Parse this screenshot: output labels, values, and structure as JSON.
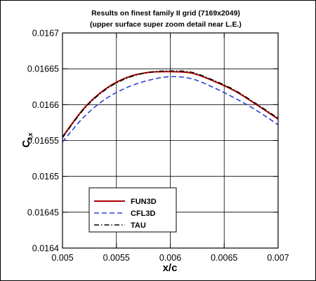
{
  "chart_data": {
    "type": "line",
    "title": "Results on finest family II grid (7169x2049)",
    "subtitle": "(upper surface super zoom detail near L.E.)",
    "xlabel": "x/c",
    "ylabel": "C",
    "ylabel_subscript": "f,x",
    "xlim": [
      0.005,
      0.007
    ],
    "ylim": [
      0.0164,
      0.0167
    ],
    "x_ticks": [
      0.005,
      0.0055,
      0.006,
      0.0065,
      0.007
    ],
    "x_tick_labels": [
      "0.005",
      "0.0055",
      "0.006",
      "0.0065",
      "0.007"
    ],
    "y_ticks": [
      0.0164,
      0.01645,
      0.0165,
      0.01655,
      0.0166,
      0.01665,
      0.0167
    ],
    "y_tick_labels": [
      "0.0164",
      "0.01645",
      "0.0165",
      "0.01655",
      "0.0166",
      "0.01665",
      "0.0167"
    ],
    "grid": true,
    "legend_placement": "lower-left",
    "series": [
      {
        "name": "FUN3D",
        "color": "#b00000",
        "style": "solid",
        "x": [
          0.005,
          0.0052,
          0.0054,
          0.0056,
          0.0058,
          0.006,
          0.0062,
          0.0064,
          0.0066,
          0.0068,
          0.007
        ],
        "y": [
          0.016555,
          0.016595,
          0.016622,
          0.016638,
          0.016645,
          0.016646,
          0.016644,
          0.016633,
          0.016619,
          0.0166,
          0.01658
        ]
      },
      {
        "name": "CFL3D",
        "color": "#2a3fd8",
        "style": "dashed",
        "x": [
          0.005,
          0.0052,
          0.0054,
          0.0056,
          0.0058,
          0.006,
          0.0062,
          0.0064,
          0.0066,
          0.0068,
          0.007
        ],
        "y": [
          0.016548,
          0.016583,
          0.016608,
          0.016624,
          0.016634,
          0.016639,
          0.016636,
          0.016624,
          0.016609,
          0.016592,
          0.016572
        ]
      },
      {
        "name": "TAU",
        "color": "#000000",
        "style": "dashdot",
        "x": [
          0.005,
          0.0052,
          0.0054,
          0.0056,
          0.0058,
          0.006,
          0.0062,
          0.0064,
          0.0066,
          0.0068,
          0.007
        ],
        "y": [
          0.016554,
          0.016594,
          0.016621,
          0.016637,
          0.016645,
          0.016647,
          0.016645,
          0.016634,
          0.01662,
          0.016601,
          0.016581
        ]
      }
    ]
  }
}
